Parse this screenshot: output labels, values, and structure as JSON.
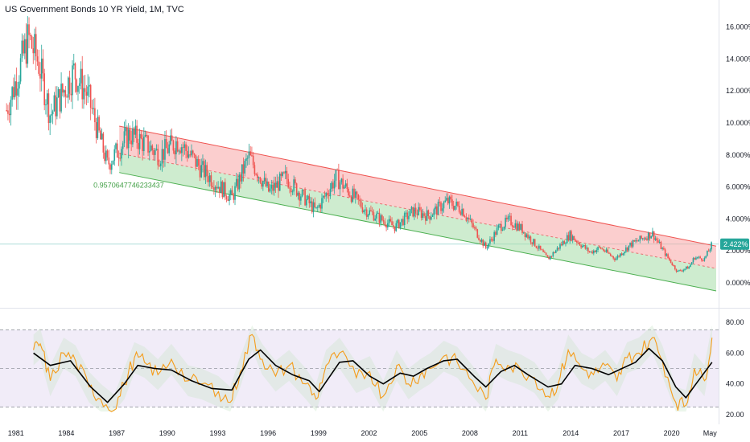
{
  "header": {
    "title": "US Government Bonds 10 YR Yield, 1M, TVC"
  },
  "colors": {
    "candle_up": "#26a69a",
    "candle_down": "#ef5350",
    "channel_upper_fill": "#f7a5a5",
    "channel_lower_fill": "#a5dca8",
    "channel_upper_line": "#ef5350",
    "channel_lower_line": "#4caf50",
    "rsi_line": "#f59c1a",
    "rsi_ma_line": "#000000",
    "rsi_band": "#ede7f6",
    "price_line": "#26a69a"
  },
  "channel_label": "0.9570647746233437",
  "current_price_label": "2.422%",
  "chart_data": [
    {
      "type": "candlestick",
      "title": "US Government Bonds 10 YR Yield, 1M, TVC",
      "x_range": [
        1980.2,
        2022.6
      ],
      "ylim": [
        -1.2,
        17.5
      ],
      "y_ticks": [
        "16.000%",
        "14.000%",
        "12.000%",
        "10.000%",
        "8.000%",
        "6.000%",
        "4.000%",
        "2.000%",
        "0.000%"
      ],
      "y_tick_values": [
        16,
        14,
        12,
        10,
        8,
        6,
        4,
        2,
        0
      ],
      "x_ticks": [
        "1981",
        "1984",
        "1987",
        "1990",
        "1993",
        "1996",
        "1999",
        "2002",
        "2005",
        "2008",
        "2011",
        "2014",
        "2017",
        "2020",
        "May"
      ],
      "x_tick_values": [
        1981,
        1984,
        1987,
        1990,
        1993,
        1996,
        1999,
        2002,
        2005,
        2008,
        2011,
        2014,
        2017,
        2020,
        2022.35
      ],
      "last_value": 2.422,
      "anchors": [
        [
          1980.4,
          10.8
        ],
        [
          1981.0,
          12.8
        ],
        [
          1981.7,
          15.3
        ],
        [
          1982.3,
          13.8
        ],
        [
          1983.0,
          10.5
        ],
        [
          1984.4,
          13.2
        ],
        [
          1985.2,
          11.8
        ],
        [
          1986.4,
          7.4
        ],
        [
          1987.7,
          9.3
        ],
        [
          1988.5,
          8.8
        ],
        [
          1989.5,
          8.0
        ],
        [
          1990.6,
          8.9
        ],
        [
          1992.0,
          7.1
        ],
        [
          1993.8,
          5.3
        ],
        [
          1994.8,
          7.9
        ],
        [
          1996.0,
          5.7
        ],
        [
          1997.0,
          6.6
        ],
        [
          1998.8,
          4.5
        ],
        [
          2000.0,
          6.6
        ],
        [
          2001.7,
          4.6
        ],
        [
          2002.8,
          3.9
        ],
        [
          2003.5,
          3.5
        ],
        [
          2004.6,
          4.5
        ],
        [
          2005.5,
          4.2
        ],
        [
          2006.6,
          5.1
        ],
        [
          2007.5,
          4.6
        ],
        [
          2008.9,
          2.2
        ],
        [
          2009.7,
          3.5
        ],
        [
          2010.3,
          3.9
        ],
        [
          2011.0,
          3.4
        ],
        [
          2012.6,
          1.5
        ],
        [
          2013.9,
          3.0
        ],
        [
          2015.1,
          1.9
        ],
        [
          2015.7,
          2.2
        ],
        [
          2016.6,
          1.5
        ],
        [
          2017.5,
          2.4
        ],
        [
          2018.8,
          3.1
        ],
        [
          2019.7,
          1.6
        ],
        [
          2020.3,
          0.7
        ],
        [
          2021.0,
          1.0
        ],
        [
          2021.3,
          1.6
        ],
        [
          2021.9,
          1.5
        ],
        [
          2022.35,
          2.42
        ]
      ],
      "channel": {
        "start_year": 1987.1,
        "end_year": 2022.6,
        "upper": [
          9.8,
          2.3
        ],
        "mid": [
          8.1,
          0.9
        ],
        "lower": [
          6.9,
          -0.5
        ]
      }
    },
    {
      "type": "line",
      "ylim": [
        18,
        82
      ],
      "y_ticks": [
        "80.00",
        "60.00",
        "40.00",
        "20.00"
      ],
      "y_tick_values": [
        80,
        60,
        40,
        20
      ],
      "band": [
        25,
        75
      ],
      "midline": 50,
      "series": [
        {
          "role": "rsi",
          "points": [
            [
              1982.0,
              62
            ],
            [
              1982.4,
              66
            ],
            [
              1983.0,
              42
            ],
            [
              1983.8,
              60
            ],
            [
              1984.5,
              55
            ],
            [
              1985.3,
              38
            ],
            [
              1986.0,
              30
            ],
            [
              1986.8,
              23
            ],
            [
              1987.4,
              40
            ],
            [
              1988.0,
              57
            ],
            [
              1988.6,
              54
            ],
            [
              1989.4,
              46
            ],
            [
              1990.2,
              56
            ],
            [
              1991.2,
              42
            ],
            [
              1992.0,
              40
            ],
            [
              1993.0,
              35
            ],
            [
              1993.7,
              28
            ],
            [
              1994.3,
              48
            ],
            [
              1995.0,
              72
            ],
            [
              1995.6,
              56
            ],
            [
              1996.4,
              45
            ],
            [
              1997.2,
              52
            ],
            [
              1998.2,
              40
            ],
            [
              1998.8,
              30
            ],
            [
              1999.4,
              52
            ],
            [
              2000.2,
              60
            ],
            [
              2001.2,
              44
            ],
            [
              2002.0,
              48
            ],
            [
              2002.8,
              32
            ],
            [
              2003.6,
              52
            ],
            [
              2004.3,
              40
            ],
            [
              2005.0,
              46
            ],
            [
              2005.6,
              50
            ],
            [
              2006.4,
              58
            ],
            [
              2007.2,
              54
            ],
            [
              2008.1,
              42
            ],
            [
              2008.9,
              30
            ],
            [
              2009.5,
              56
            ],
            [
              2010.2,
              52
            ],
            [
              2011.0,
              49
            ],
            [
              2011.8,
              44
            ],
            [
              2012.6,
              32
            ],
            [
              2013.2,
              40
            ],
            [
              2013.8,
              62
            ],
            [
              2014.6,
              50
            ],
            [
              2015.3,
              46
            ],
            [
              2016.0,
              52
            ],
            [
              2016.7,
              42
            ],
            [
              2017.3,
              57
            ],
            [
              2018.0,
              60
            ],
            [
              2018.8,
              70
            ],
            [
              2019.4,
              55
            ],
            [
              2020.2,
              28
            ],
            [
              2020.8,
              26
            ],
            [
              2021.3,
              50
            ],
            [
              2021.9,
              42
            ],
            [
              2022.35,
              70
            ]
          ]
        },
        {
          "role": "ma",
          "points": [
            [
              1982.0,
              60
            ],
            [
              1983.0,
              52
            ],
            [
              1984.2,
              55
            ],
            [
              1985.4,
              38
            ],
            [
              1986.4,
              28
            ],
            [
              1987.4,
              40
            ],
            [
              1988.2,
              52
            ],
            [
              1989.2,
              50
            ],
            [
              1990.2,
              49
            ],
            [
              1991.4,
              42
            ],
            [
              1992.6,
              37
            ],
            [
              1993.8,
              36
            ],
            [
              1994.8,
              56
            ],
            [
              1995.5,
              62
            ],
            [
              1996.4,
              52
            ],
            [
              1997.4,
              46
            ],
            [
              1998.4,
              42
            ],
            [
              1999.0,
              35
            ],
            [
              2000.2,
              54
            ],
            [
              2001.0,
              55
            ],
            [
              2002.0,
              45
            ],
            [
              2002.8,
              40
            ],
            [
              2003.8,
              47
            ],
            [
              2004.6,
              45
            ],
            [
              2005.4,
              50
            ],
            [
              2006.4,
              55
            ],
            [
              2007.2,
              56
            ],
            [
              2008.2,
              45
            ],
            [
              2008.9,
              38
            ],
            [
              2009.8,
              48
            ],
            [
              2010.6,
              52
            ],
            [
              2011.4,
              46
            ],
            [
              2012.6,
              38
            ],
            [
              2013.4,
              40
            ],
            [
              2014.2,
              52
            ],
            [
              2015.2,
              50
            ],
            [
              2016.2,
              46
            ],
            [
              2017.0,
              50
            ],
            [
              2017.8,
              54
            ],
            [
              2018.6,
              63
            ],
            [
              2019.4,
              55
            ],
            [
              2020.2,
              38
            ],
            [
              2020.8,
              31
            ],
            [
              2021.4,
              40
            ],
            [
              2022.35,
              54
            ]
          ]
        }
      ]
    }
  ]
}
